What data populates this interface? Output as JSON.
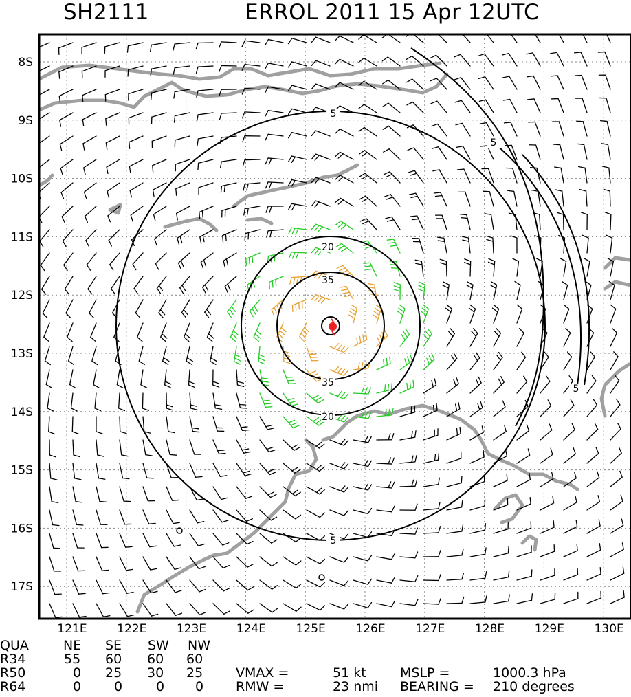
{
  "header": {
    "storm_id": "SH2111",
    "storm_info": "ERROL 2011 15 Apr 12UTC"
  },
  "map": {
    "lat_labels": [
      "8S",
      "9S",
      "10S",
      "11S",
      "12S",
      "13S",
      "14S",
      "15S",
      "16S",
      "17S"
    ],
    "lon_labels": [
      "121E",
      "122E",
      "123E",
      "124E",
      "125E",
      "126E",
      "127E",
      "128E",
      "129E",
      "130E"
    ],
    "contours": [
      {
        "level": "5",
        "label": "5"
      },
      {
        "level": "20",
        "label": "20"
      },
      {
        "level": "35",
        "label": "35"
      }
    ],
    "colors": {
      "coast": "#a0a0a0",
      "barbs_low": "#000000",
      "barbs_34kt": "#22cc22",
      "barbs_50kt": "#e8a030",
      "center": "#ee2222"
    }
  },
  "table": {
    "header": [
      "QUA",
      "NE",
      "SE",
      "SW",
      "NW"
    ],
    "rows": [
      {
        "label": "R34",
        "ne": "55",
        "se": "60",
        "sw": "60",
        "nw": "60"
      },
      {
        "label": "R50",
        "ne": "0",
        "se": "25",
        "sw": "30",
        "nw": "25"
      },
      {
        "label": "R64",
        "ne": "0",
        "se": "0",
        "sw": "0",
        "nw": "0"
      }
    ],
    "vmax_label": "VMAX =",
    "vmax_value": "51 kt",
    "mslp_label": "MSLP =",
    "mslp_value": "1000.3 hPa",
    "rmw_label": "RMW  =",
    "rmw_value": "23 nmi",
    "bearing_label": "BEARING =",
    "bearing_value": "210 degrees"
  }
}
